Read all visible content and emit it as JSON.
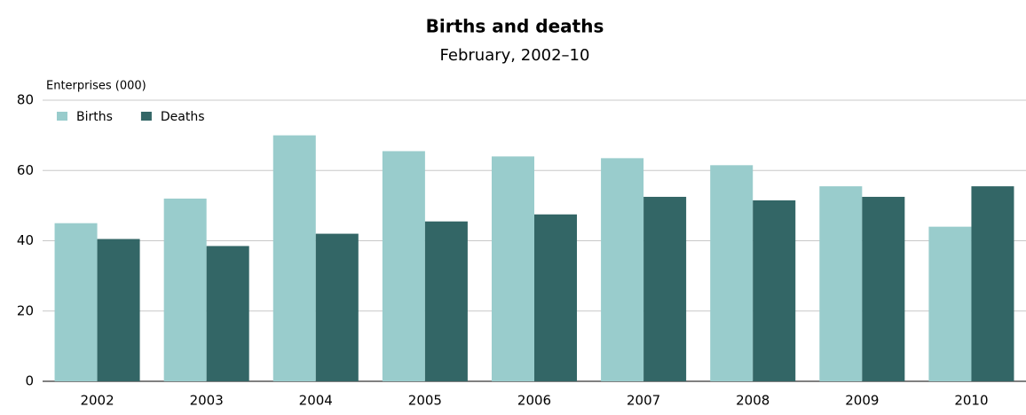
{
  "chart_data": {
    "type": "bar",
    "title": "Births and deaths",
    "subtitle": "February, 2002–10",
    "y_label": "Enterprises (000)",
    "categories": [
      "2002",
      "2003",
      "2004",
      "2005",
      "2006",
      "2007",
      "2008",
      "2009",
      "2010"
    ],
    "series": [
      {
        "name": "Births",
        "color": "#99cccc",
        "values": [
          45,
          52,
          70,
          65.5,
          64,
          63.5,
          61.5,
          55.5,
          44
        ]
      },
      {
        "name": "Deaths",
        "color": "#336666",
        "values": [
          40.5,
          38.5,
          42,
          45.5,
          47.5,
          52.5,
          51.5,
          52.5,
          55.5
        ]
      }
    ],
    "ylim": [
      0,
      80
    ],
    "yticks": [
      0,
      20,
      40,
      60,
      80
    ],
    "grid": true,
    "legend": "top-left"
  }
}
